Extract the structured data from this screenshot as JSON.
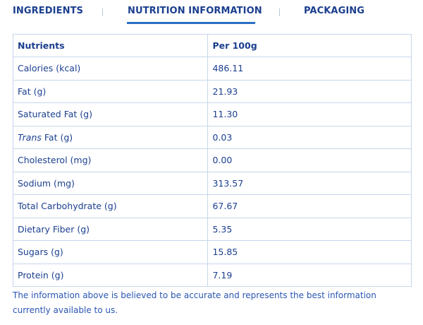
{
  "tabs": [
    {
      "label": "INGREDIENTS",
      "active": false
    },
    {
      "label": "NUTRITION INFORMATION",
      "active": true
    },
    {
      "label": "PACKAGING",
      "active": false
    }
  ],
  "table": {
    "headers": [
      "Nutrients",
      "Per 100g"
    ],
    "rows": [
      {
        "name": "Calories (kcal)",
        "value": "486.11"
      },
      {
        "name": "Fat (g)",
        "value": "21.93"
      },
      {
        "name": "Saturated Fat (g)",
        "value": "11.30"
      },
      {
        "name_italic": "Trans",
        "name_rest": " Fat (g)",
        "value": "0.03"
      },
      {
        "name": "Cholesterol (mg)",
        "value": "0.00"
      },
      {
        "name": "Sodium (mg)",
        "value": "313.57"
      },
      {
        "name": "Total Carbohydrate (g)",
        "value": "67.67"
      },
      {
        "name": "Dietary Fiber (g)",
        "value": "5.35"
      },
      {
        "name": "Sugars (g)",
        "value": "15.85"
      },
      {
        "name": "Protein (g)",
        "value": "7.19"
      }
    ]
  },
  "note": {
    "line1": "The information above is believed to be accurate and represents the best information",
    "line2": "currently available to us."
  },
  "colors": {
    "text": "#1b3f8f",
    "accent": "#2c6fc5",
    "border": "#c7d6ec"
  }
}
